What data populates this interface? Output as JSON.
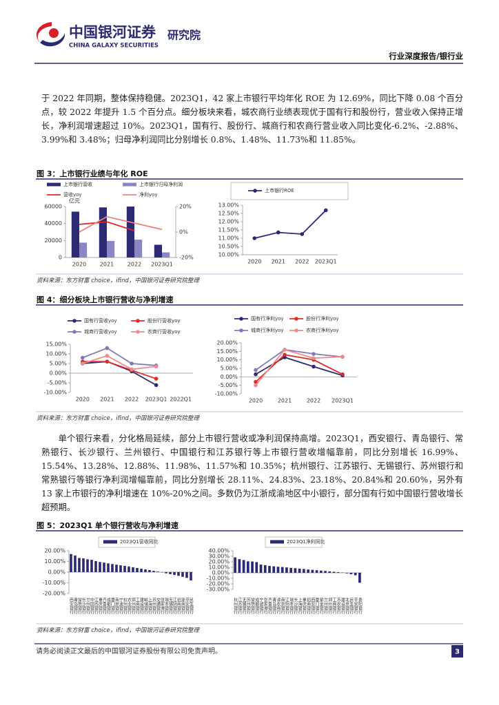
{
  "header": {
    "brand_cn": "中国银河证券",
    "brand_en": "CHINA GALAXY SECURITIES",
    "dept": "研究院",
    "report_type": "行业深度报告/银行业"
  },
  "paragraphs": [
    "于 2022 年同期，整体保持稳健。2023Q1，42 家上市银行平均年化 ROE 为 12.69%，同比下降 0.08 个百分点，较 2022 年提升 1.5 个百分点。细分板块来看，城农商行业绩表现优于国有行和股份行，营业收入保持正增长，净利润增速超过 10%。2023Q1，国有行、股份行、城商行和农商行营业收入同比变化-6.2%、-2.88%、3.99%和 3.48%；归母净利润同比分别增长 0.8%、1.48%、11.73%和 11.85%。",
    "单个银行来看，分化格局延续，部分上市银行营收或净利润保持高增。2023Q1，西安银行、青岛银行、常熟银行、长沙银行、兰州银行、中国银行和江苏银行等上市银行营收增幅靠前，同比分别增长 16.99%、15.54%、13.28%、12.88%、11.98%、11.57%和 10.35%；杭州银行、江苏银行、无锡银行、苏州银行和常熟银行等银行净利润增幅靠前，同比分别增长 28.11%、24.83%、23.18%、20.84%和 20.60%，另外有 13 家上市银行的净利增速在 10%-20%之间。多数仍为江浙成渝地区中小银行，部分国有行如中国银行营收增长超预期。"
  ],
  "figures": [
    {
      "title": "图 3：上市银行业绩与年化 ROE",
      "source": "资料来源：东方财富 choice，ifind，中国银河证券研究院整理",
      "charts": [
        {
          "type": "bar",
          "unit_label": "亿元",
          "categories": [
            "2020",
            "2021",
            "2022",
            "2023Q1"
          ],
          "series": [
            {
              "name": "上市银行营收",
              "color": "#2b2a73",
              "values": [
                54000,
                59000,
                60000,
                15000
              ]
            },
            {
              "name": "上市银行归母净利润",
              "color": "#8a86c4",
              "values": [
                17500,
                19500,
                21000,
                6000
              ]
            },
            {
              "name": "营收yoy",
              "color": "#e02424",
              "type": "line",
              "axis": "y2",
              "values": [
                6,
                8,
                1,
                null
              ]
            },
            {
              "name": "净利yoy",
              "color": "#f08080",
              "type": "line",
              "axis": "y2",
              "values": [
                0,
                12,
                7,
                2
              ]
            }
          ],
          "ylim": [
            0,
            60000
          ],
          "yticks": [
            0,
            20000,
            40000,
            60000
          ],
          "y2lim": [
            -20,
            20
          ],
          "y2ticks": [
            {
              "value": -20,
              "label": "-20%"
            },
            {
              "value": 0,
              "label": "0%"
            },
            {
              "value": 20,
              "label": "20%"
            }
          ]
        },
        {
          "type": "line",
          "categories": [
            "2020",
            "2021",
            "2022",
            "2023Q1"
          ],
          "series": [
            {
              "name": "上市银行ROE",
              "color": "#2b2a73",
              "marker": true,
              "values": [
                11.0,
                11.35,
                11.25,
                12.69
              ]
            }
          ],
          "ylim": [
            10,
            13
          ],
          "yticks": [
            {
              "value": 10,
              "label": "10.00%"
            },
            {
              "value": 10.5,
              "label": "10.50%"
            },
            {
              "value": 11,
              "label": "11.00%"
            },
            {
              "value": 11.5,
              "label": "11.50%"
            },
            {
              "value": 12,
              "label": "12.00%"
            },
            {
              "value": 12.5,
              "label": "12.50%"
            },
            {
              "value": 13,
              "label": "13.00%"
            }
          ]
        }
      ]
    },
    {
      "title": "图 4：细分板块上市银行营收与净利增速",
      "source": "资料来源：东方财富 choice，ifind，中国银河证券研究院整理",
      "charts": [
        {
          "type": "line",
          "categories": [
            "2020",
            "2021",
            "2022",
            "2023Q1",
            "2022Q1"
          ],
          "series": [
            {
              "name": "国有行营收yoy",
              "color": "#2b2a73",
              "marker": true,
              "values": [
                5,
                6,
                1,
                -6.2,
                null
              ]
            },
            {
              "name": "股份行营收yoy",
              "color": "#e02b2b",
              "marker": true,
              "values": [
                6,
                6,
                1.5,
                -2.88,
                null
              ]
            },
            {
              "name": "城商行营收yoy",
              "color": "#7f7bb8",
              "marker": true,
              "values": [
                8,
                13,
                5,
                3.99,
                null
              ]
            },
            {
              "name": "农商行营收yoy",
              "color": "#ef8a8a",
              "marker": true,
              "values": [
                5,
                9,
                2,
                3.48,
                null
              ]
            }
          ],
          "ylim": [
            -10,
            15
          ],
          "yticks": [
            {
              "value": -10,
              "label": "-10.00%"
            },
            {
              "value": -5,
              "label": "-5.00%"
            },
            {
              "value": 0,
              "label": "0.00%"
            },
            {
              "value": 5,
              "label": "5.00%"
            },
            {
              "value": 10,
              "label": "10.00%"
            },
            {
              "value": 15,
              "label": "15.00%"
            }
          ]
        },
        {
          "type": "line",
          "categories": [
            "2020",
            "2021",
            "2022",
            "2023Q1"
          ],
          "series": [
            {
              "name": "国有行净利yoy",
              "color": "#2b2a73",
              "marker": true,
              "values": [
                1.5,
                11.5,
                6,
                0.8
              ]
            },
            {
              "name": "股份行净利yoy",
              "color": "#e02b2b",
              "marker": true,
              "values": [
                -3,
                13,
                10,
                1.48
              ]
            },
            {
              "name": "城商行净利yoy",
              "color": "#7f7bb8",
              "marker": true,
              "values": [
                4,
                16,
                13.5,
                11.73
              ]
            },
            {
              "name": "农商行净利yoy",
              "color": "#ef8a8a",
              "marker": true,
              "values": [
                -5,
                16,
                11,
                11.85
              ]
            }
          ],
          "ylim": [
            -10,
            20
          ],
          "yticks": [
            {
              "value": -10,
              "label": "-10.00%"
            },
            {
              "value": -5,
              "label": "-5.00%"
            },
            {
              "value": 0,
              "label": "0.00%"
            },
            {
              "value": 5,
              "label": "5.00%"
            },
            {
              "value": 10,
              "label": "10.00%"
            },
            {
              "value": 15,
              "label": "15.00%"
            },
            {
              "value": 20,
              "label": "20.00%"
            }
          ]
        }
      ]
    },
    {
      "title": "图 5：2023Q1 单个银行营收与净利增速",
      "source": "资料来源：东方财富 choice，ifind，中国银河证券研究院整理",
      "charts": [
        {
          "type": "bar",
          "categories": [
            "西安银行",
            "青岛银行",
            "常熟银行",
            "长沙银行",
            "兰州银行",
            "中国银行",
            "江苏银行",
            "重庆银行",
            "齐鲁银行",
            "成都银行",
            "厦门银行",
            "南京银行",
            "宁波银行",
            "杭州银行",
            "农业银行",
            "郑州银行",
            "工商银行",
            "建设银行",
            "邮储银行",
            "上海银行",
            "苏州银行",
            "交通银行",
            "张家港行",
            "瑞丰银行",
            "无锡银行",
            "江阴银行",
            "招商银行",
            "浙商银行",
            "平安银行",
            "民生银行"
          ],
          "series": [
            {
              "name": "2023Q1营收同比",
              "color": "#2b2a73",
              "values": [
                16.99,
                15.54,
                13.28,
                12.88,
                11.98,
                11.57,
                10.35,
                9.5,
                8.9,
                8.2,
                7.6,
                7.0,
                6.4,
                5.9,
                5.3,
                4.6,
                3.9,
                3.2,
                2.6,
                1.9,
                1.2,
                0.5,
                -0.3,
                -1.1,
                -1.9,
                -2.7,
                -3.5,
                -4.4,
                -5.4,
                -7.8
              ]
            }
          ],
          "ylim": [
            -20,
            20
          ],
          "yticks": [
            {
              "value": -20,
              "label": "-20.00%"
            },
            {
              "value": -10,
              "label": "-10.00%"
            },
            {
              "value": 0,
              "label": "0.00%"
            },
            {
              "value": 10,
              "label": "10.00%"
            },
            {
              "value": 20,
              "label": "20.00%"
            }
          ]
        },
        {
          "type": "bar",
          "categories": [
            "杭州银行",
            "江苏银行",
            "无锡银行",
            "苏州银行",
            "常熟银行",
            "成都银行",
            "宁波银行",
            "张家港行",
            "齐鲁银行",
            "青岛银行",
            "渝农商行",
            "南京银行",
            "江阴银行",
            "瑞丰银行",
            "长沙银行",
            "上海银行",
            "重庆银行",
            "招商银行",
            "西安银行",
            "厦门银行",
            "紫金银行",
            "兰州银行",
            "郑州银行",
            "工商银行",
            "苏农银行",
            "建设银行",
            "北京银行",
            "民生银行",
            "平安银行",
            "贵阳银行"
          ],
          "series": [
            {
              "name": "2023Q1净利同比",
              "color": "#2b2a73",
              "values": [
                28.11,
                24.83,
                23.18,
                20.84,
                20.6,
                19.5,
                15.0,
                14.0,
                12.5,
                11.8,
                11.0,
                10.5,
                9.8,
                9.0,
                8.4,
                7.6,
                6.9,
                6.0,
                5.4,
                4.8,
                4.1,
                3.4,
                2.6,
                1.9,
                1.2,
                0.5,
                -1.0,
                -2.5,
                -4.5,
                -18.0
              ]
            }
          ],
          "ylim": [
            -30,
            40
          ],
          "yticks": [
            {
              "value": -30,
              "label": "-30.00%"
            },
            {
              "value": -20,
              "label": "-20.00%"
            },
            {
              "value": -10,
              "label": "-10.00%"
            },
            {
              "value": 0,
              "label": "0.00%"
            },
            {
              "value": 10,
              "label": "10.00%"
            },
            {
              "value": 20,
              "label": "20.00%"
            },
            {
              "value": 30,
              "label": "30.00%"
            },
            {
              "value": 40,
              "label": "40.00%"
            }
          ]
        }
      ]
    }
  ],
  "footer": {
    "disclaimer": "请务必阅读正文最后的中国银河证券股份有限公司免责声明。",
    "page": "3"
  }
}
